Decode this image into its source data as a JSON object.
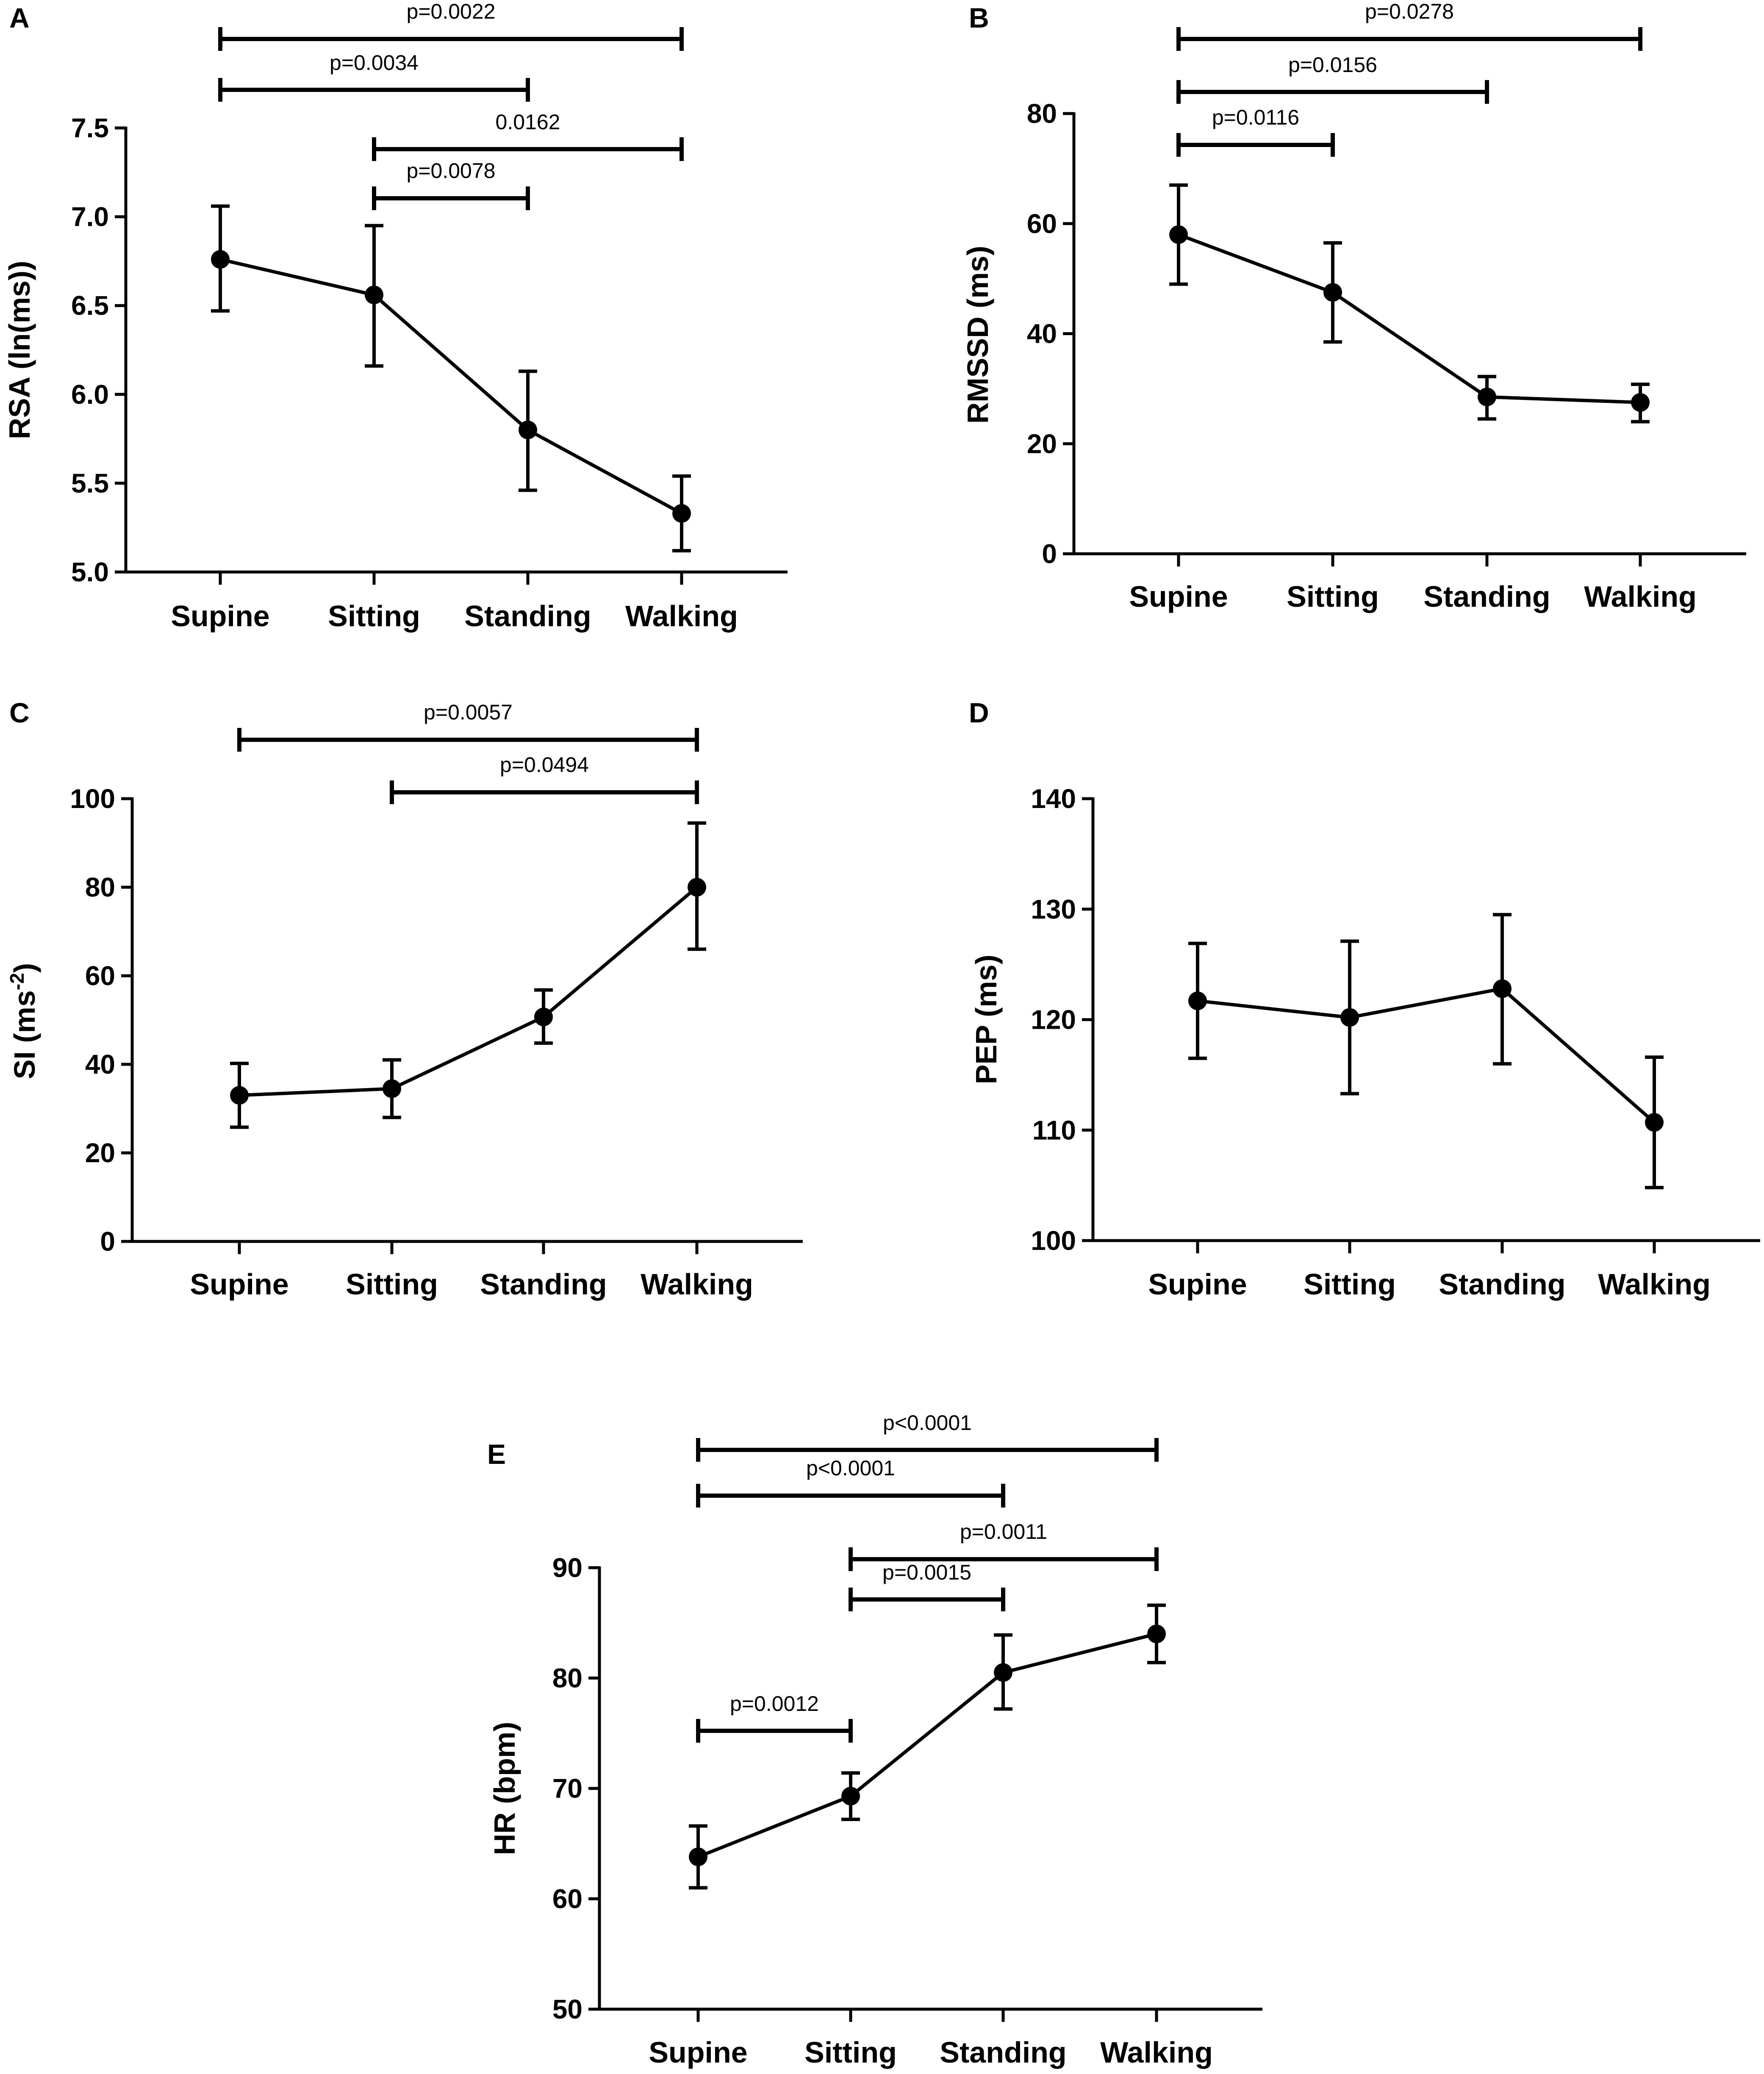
{
  "colors": {
    "line": "#000000",
    "background": "#ffffff"
  },
  "chart_data": [
    {
      "panel": "A",
      "type": "line",
      "categories": [
        "Supine",
        "Sitting",
        "Standing",
        "Walking"
      ],
      "values": [
        6.76,
        6.56,
        5.8,
        5.33
      ],
      "err_lower": [
        6.47,
        6.16,
        5.46,
        5.12
      ],
      "err_upper": [
        7.06,
        6.95,
        6.13,
        5.54
      ],
      "ylabel": "RSA (ln(ms))",
      "ylim": [
        5.0,
        7.5
      ],
      "yticks": [
        5.0,
        5.5,
        6.0,
        6.5,
        7.0,
        7.5
      ],
      "ytick_labels": [
        "5.0",
        "5.5",
        "6.0",
        "6.5",
        "7.0",
        "7.5"
      ],
      "comparisons": [
        {
          "from": "Supine",
          "to": "Walking",
          "label": "p=0.0022"
        },
        {
          "from": "Supine",
          "to": "Standing",
          "label": "p=0.0034"
        },
        {
          "from": "Sitting",
          "to": "Walking",
          "label": "0.0162"
        },
        {
          "from": "Sitting",
          "to": "Standing",
          "label": "p=0.0078"
        }
      ]
    },
    {
      "panel": "B",
      "type": "line",
      "categories": [
        "Supine",
        "Sitting",
        "Standing",
        "Walking"
      ],
      "values": [
        58,
        47.5,
        28.5,
        27.5
      ],
      "err_lower": [
        49,
        38.5,
        24.5,
        24
      ],
      "err_upper": [
        67,
        56.5,
        32.2,
        30.8
      ],
      "ylabel": "RMSSD (ms)",
      "ylim": [
        0,
        80
      ],
      "yticks": [
        0,
        20,
        40,
        60,
        80
      ],
      "ytick_labels": [
        "0",
        "20",
        "40",
        "60",
        "80"
      ],
      "comparisons": [
        {
          "from": "Supine",
          "to": "Walking",
          "label": "p=0.0278"
        },
        {
          "from": "Supine",
          "to": "Standing",
          "label": "p=0.0156"
        },
        {
          "from": "Supine",
          "to": "Sitting",
          "label": "p=0.0116"
        }
      ]
    },
    {
      "panel": "C",
      "type": "line",
      "categories": [
        "Supine",
        "Sitting",
        "Standing",
        "Walking"
      ],
      "values": [
        33,
        34.5,
        50.7,
        80
      ],
      "err_lower": [
        25.8,
        28,
        44.8,
        66
      ],
      "err_upper": [
        40.2,
        41,
        56.8,
        94.5
      ],
      "ylabel": "SI (ms",
      "ylabel_sup": "-2",
      "ylabel_end": ")",
      "ylim": [
        0,
        100
      ],
      "yticks": [
        0,
        20,
        40,
        60,
        80,
        100
      ],
      "ytick_labels": [
        "0",
        "20",
        "40",
        "60",
        "80",
        "100"
      ],
      "comparisons": [
        {
          "from": "Supine",
          "to": "Walking",
          "label": "p=0.0057"
        },
        {
          "from": "Sitting",
          "to": "Walking",
          "label": "p=0.0494"
        }
      ]
    },
    {
      "panel": "D",
      "type": "line",
      "categories": [
        "Supine",
        "Sitting",
        "Standing",
        "Walking"
      ],
      "values": [
        121.7,
        120.2,
        122.8,
        110.7
      ],
      "err_lower": [
        116.5,
        113.3,
        116,
        104.8
      ],
      "err_upper": [
        126.9,
        127.1,
        129.5,
        116.6
      ],
      "ylabel": "PEP  (ms)",
      "ylim": [
        100,
        140
      ],
      "yticks": [
        100,
        110,
        120,
        130,
        140
      ],
      "ytick_labels": [
        "100",
        "110",
        "120",
        "130",
        "140"
      ],
      "comparisons": []
    },
    {
      "panel": "E",
      "type": "line",
      "categories": [
        "Supine",
        "Sitting",
        "Standing",
        "Walking"
      ],
      "values": [
        63.8,
        69.3,
        80.5,
        84
      ],
      "err_lower": [
        61,
        67.2,
        77.2,
        81.4
      ],
      "err_upper": [
        66.6,
        71.4,
        83.9,
        86.6
      ],
      "ylabel": "HR (bpm)",
      "ylim": [
        50,
        90
      ],
      "yticks": [
        50,
        60,
        70,
        80,
        90
      ],
      "ytick_labels": [
        "50",
        "60",
        "70",
        "80",
        "90"
      ],
      "comparisons": [
        {
          "from": "Supine",
          "to": "Walking",
          "label": "p<0.0001"
        },
        {
          "from": "Supine",
          "to": "Standing",
          "label": "p<0.0001"
        },
        {
          "from": "Sitting",
          "to": "Walking",
          "label": "p=0.0011"
        },
        {
          "from": "Sitting",
          "to": "Standing",
          "label": "p=0.0015"
        },
        {
          "from": "Supine",
          "to": "Sitting",
          "label": "p=0.0012"
        }
      ]
    }
  ]
}
